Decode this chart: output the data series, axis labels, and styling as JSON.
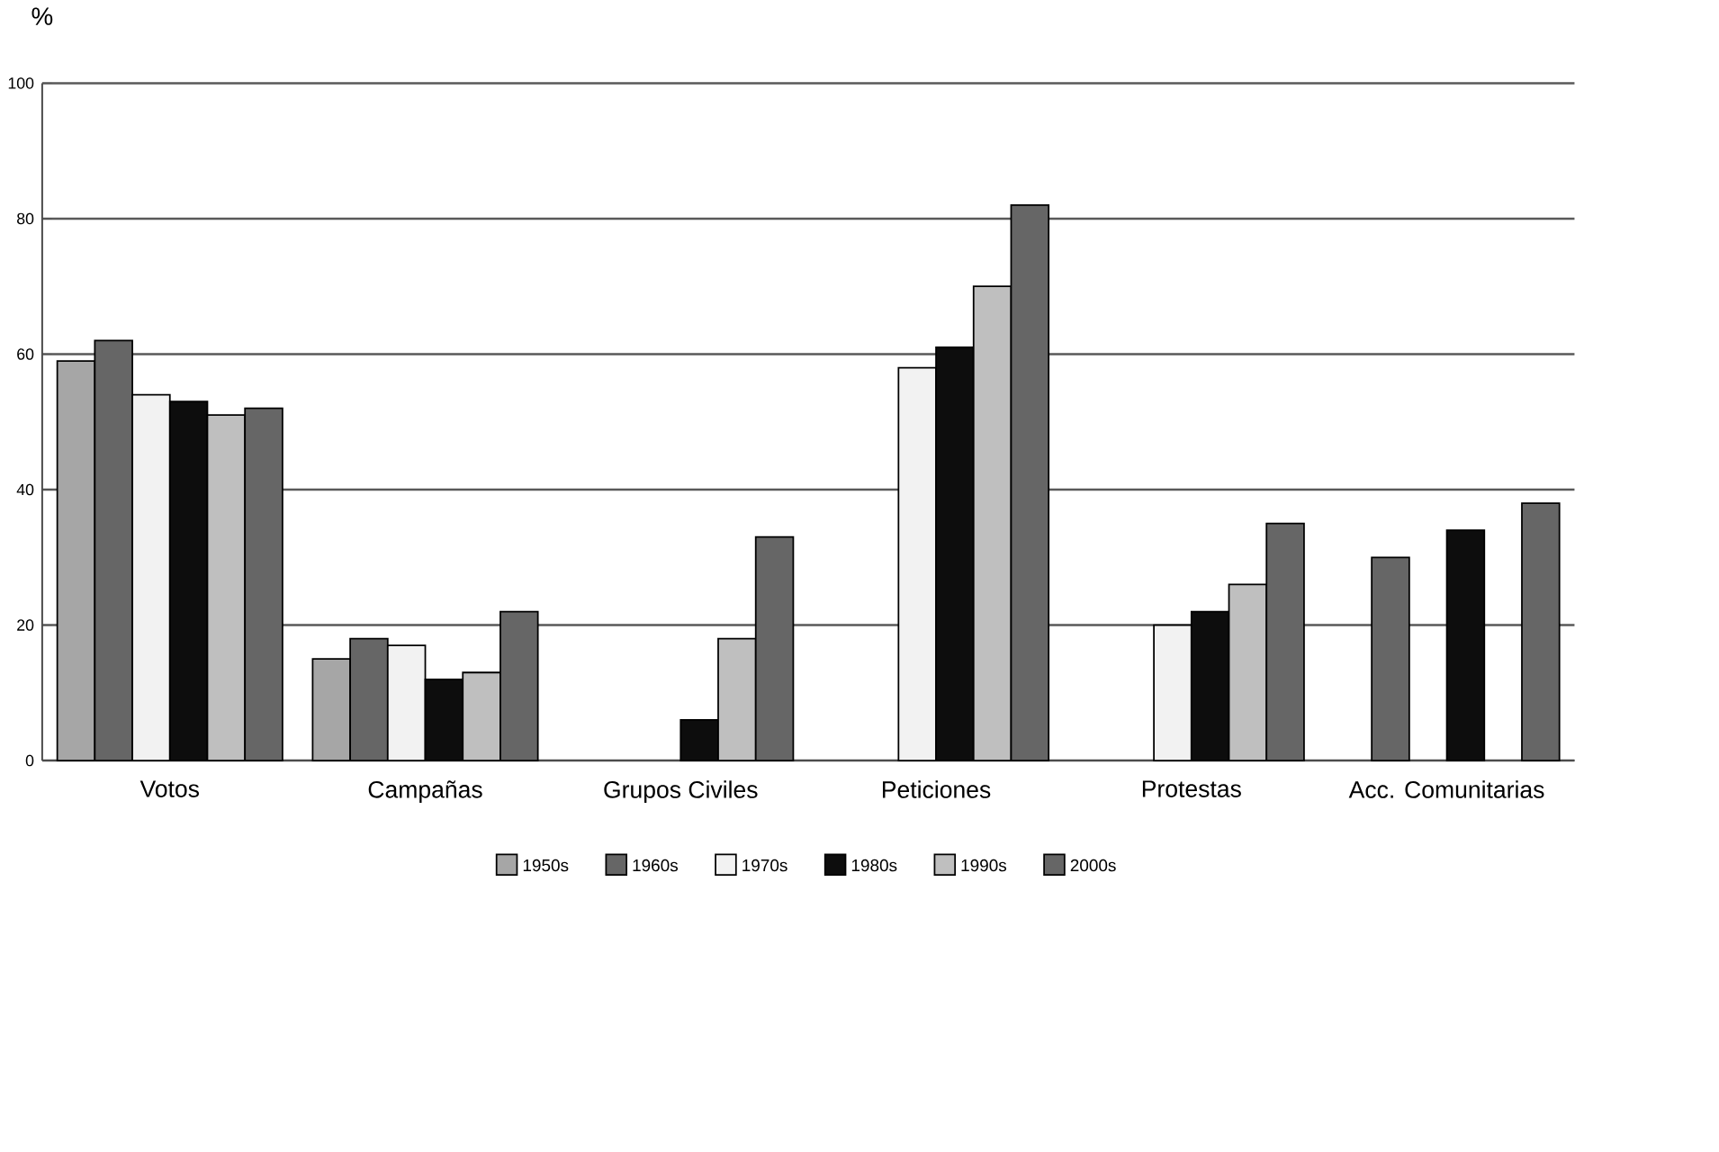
{
  "chart_data": {
    "type": "bar",
    "ylabel": "%",
    "categories": [
      "Votos",
      "Campañas",
      "Grupos Civiles",
      "Peticiones",
      "Protestas",
      "Acc. Comunitarias"
    ],
    "series": [
      {
        "name": "1950s",
        "color": "#a6a6a6",
        "values": [
          59,
          15,
          null,
          null,
          null,
          null
        ]
      },
      {
        "name": "1960s",
        "color": "#666666",
        "values": [
          62,
          18,
          null,
          null,
          null,
          30
        ]
      },
      {
        "name": "1970s",
        "color": "#f2f2f2",
        "values": [
          54,
          17,
          null,
          58,
          20,
          null
        ]
      },
      {
        "name": "1980s",
        "color": "#0d0d0d",
        "values": [
          53,
          12,
          6,
          61,
          22,
          34
        ]
      },
      {
        "name": "1990s",
        "color": "#bfbfbf",
        "values": [
          51,
          13,
          18,
          70,
          26,
          null
        ]
      },
      {
        "name": "2000s",
        "color": "#666666",
        "values": [
          52,
          22,
          33,
          82,
          35,
          38
        ]
      }
    ],
    "ylim": [
      0,
      100
    ],
    "yticks": [
      0,
      20,
      40,
      60,
      80,
      100
    ],
    "grid": "y",
    "legend": "bottom"
  }
}
